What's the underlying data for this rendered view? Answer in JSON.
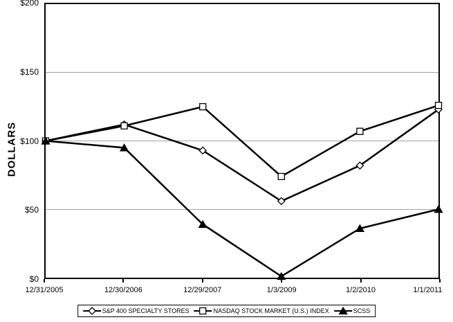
{
  "chart_data": {
    "type": "line",
    "title": "",
    "xlabel": "",
    "ylabel": "DOLLARS",
    "categories": [
      "12/31/2005",
      "12/30/2006",
      "12/29/2007",
      "1/3/2009",
      "1/2/2010",
      "1/1/2011"
    ],
    "series": [
      {
        "name": "S&P 400 SPECIALTY STORES",
        "marker": "diamond",
        "marker_fill": "#ffffff",
        "values": [
          100,
          112,
          93,
          56,
          82,
          123
        ]
      },
      {
        "name": "NASDAQ STOCK MARKET (U.S.) INDEX",
        "marker": "square",
        "marker_fill": "#ffffff",
        "values": [
          100,
          111,
          125,
          74,
          107,
          126
        ]
      },
      {
        "name": "SCSS",
        "marker": "triangle",
        "marker_fill": "#000000",
        "values": [
          100,
          95,
          39,
          1,
          36,
          50
        ]
      }
    ],
    "y_ticks": [
      {
        "label": "$200",
        "value": 200
      },
      {
        "label": "$150",
        "value": 150
      },
      {
        "label": "$100",
        "value": 100
      },
      {
        "label": "$50",
        "value": 50
      },
      {
        "label": "$0",
        "value": 0
      }
    ],
    "ylim": [
      0,
      200
    ],
    "grid": true,
    "legend_position": "bottom",
    "line_color": "#000000",
    "grid_color": "#a0a0a0",
    "background": "#ffffff"
  }
}
